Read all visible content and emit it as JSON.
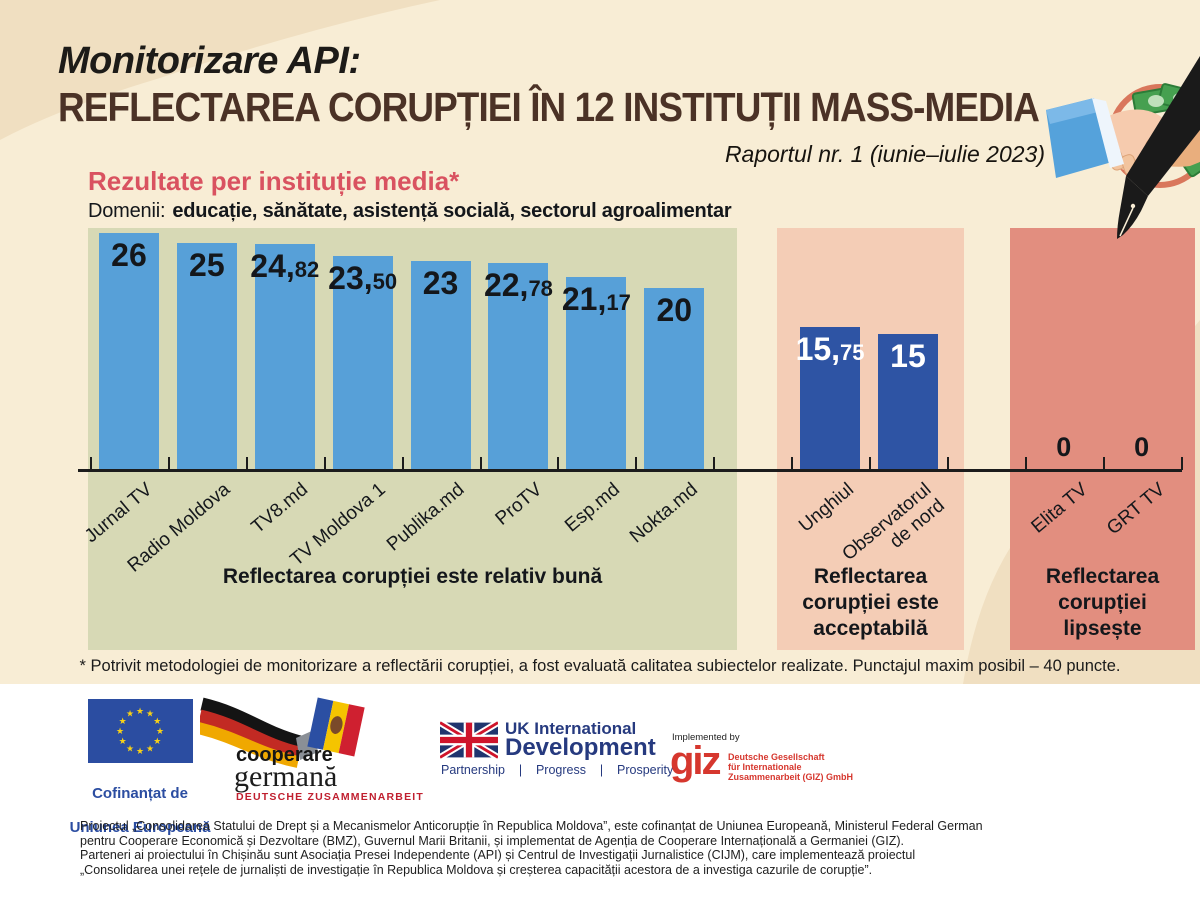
{
  "header": {
    "kicker": "Monitorizare API:",
    "title": "REFLECTAREA CORUPȚIEI ÎN 12 INSTITUȚII MASS-MEDIA",
    "report": "Raportul nr. 1 (iunie–iulie 2023)",
    "subtitle": "Rezultate per instituție media*",
    "domains_label": "Domenii:",
    "domains": "educație, sănătate, asistență socială, sectorul agroalimentar"
  },
  "chart_data": {
    "type": "bar",
    "title": "Rezultate per instituție media*",
    "max_possible_points": 40,
    "ylim": [
      0,
      26
    ],
    "grid": false,
    "legend": false,
    "groups": [
      {
        "caption": "Reflectarea corupției este relativ bună",
        "panel_color": "#d7d9b5",
        "bar_color": "#57a0d8",
        "value_color": "#14171b",
        "categories": [
          "Jurnal TV",
          "Radio Moldova",
          "TV8.md",
          "TV Moldova 1",
          "Publika.md",
          "ProTV",
          "Esp.md",
          "Nokta.md"
        ],
        "values": [
          26,
          25,
          24.82,
          23.5,
          23,
          22.78,
          21.17,
          20
        ],
        "displays": [
          "26",
          "25",
          "24,82",
          "23,50",
          "23",
          "22,78",
          "21,17",
          "20"
        ]
      },
      {
        "caption": "Reflectarea\ncorupției este\nacceptabilă",
        "panel_color": "#f4cdb6",
        "bar_color": "#2e54a4",
        "value_color": "#ffffff",
        "categories": [
          "Unghiul",
          "Observatorul\nde nord"
        ],
        "values": [
          15.75,
          15
        ],
        "displays": [
          "15,75",
          "15"
        ]
      },
      {
        "caption": "Reflectarea\ncorupției\nlipsește",
        "panel_color": "#e28e7f",
        "bar_color": null,
        "value_color": "#14171b",
        "categories": [
          "Elita TV",
          "GRT TV"
        ],
        "values": [
          0,
          0
        ],
        "displays": [
          "0",
          "0"
        ]
      }
    ]
  },
  "footnote": "* Potrivit metodologiei de monitorizare a reflectării corupției, a fost evaluată calitatea subiectelor realizate. Punctajul maxim posibil – 40 puncte.",
  "footer": {
    "eu": {
      "line1": "Cofinanțat de",
      "line2": "Uniunea Europeană"
    },
    "german_cooperation": {
      "word1": "cooperare",
      "word2": "germană",
      "tagline": "DEUTSCHE ZUSAMMENARBEIT"
    },
    "uk": {
      "line1": "UK International",
      "line2": "Development",
      "tagline": "Partnership    |    Progress    |    Prosperity"
    },
    "giz": {
      "implemented_by": "Implemented by",
      "logo": "giz",
      "desc": "Deutsche Gesellschaft\nfür Internationale\nZusammenarbeit (GIZ) GmbH"
    }
  },
  "credits": "Proiectul „Consolidarea Statului de Drept și a Mecanismelor Anticorupție în Republica Moldova”, este cofinanțat de Uniunea Europeană, Ministerul Federal German\npentru Cooperare Economică și Dezvoltare (BMZ), Guvernul Marii Britanii, și implementat de Agenția de Cooperare Internațională a Germaniei (GIZ).\nParteneri ai proiectului în Chișinău sunt Asociația Presei Independente (API) și Centrul de Investigații Jurnalistice (CIJM), care implementează proiectul\n„Consolidarea unei rețele de jurnaliști de investigație în Republica Moldova și creșterea capacității acestora de a investiga cazurile de corupție”."
}
